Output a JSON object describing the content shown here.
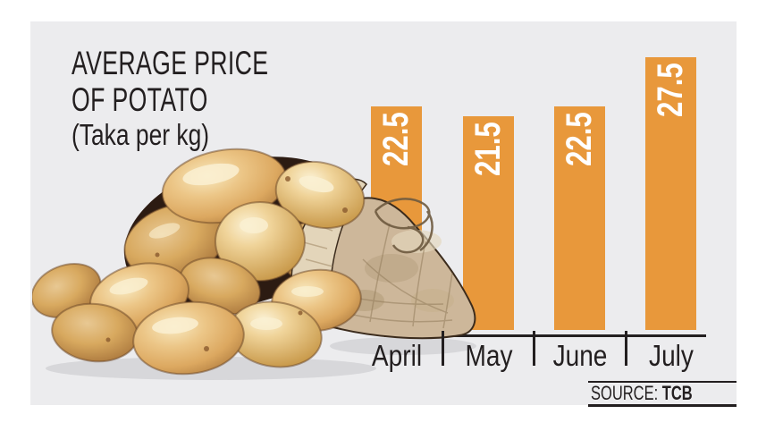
{
  "title": {
    "line1": "AVERAGE PRICE",
    "line2": "OF POTATO",
    "subtitle": "(Taka per kg)"
  },
  "source": {
    "label": "SOURCE:",
    "value": "TCB"
  },
  "colors": {
    "bar_orange": "#e8983b",
    "panel_background": "#ececee",
    "ink": "#231f20",
    "value_label": "#ffffff"
  },
  "illustration": {
    "name": "potato-sack"
  },
  "chart_data": {
    "type": "bar",
    "title": "AVERAGE PRICE OF POTATO",
    "ylabel": "Taka per kg",
    "xlabel": "",
    "categories": [
      "April",
      "May",
      "June",
      "July"
    ],
    "values": [
      22.5,
      21.5,
      22.5,
      27.5
    ],
    "ylim": [
      0,
      30
    ],
    "grid": false,
    "legend": "none",
    "value_label_style": "rotated 90deg, white, inside top of bar"
  }
}
